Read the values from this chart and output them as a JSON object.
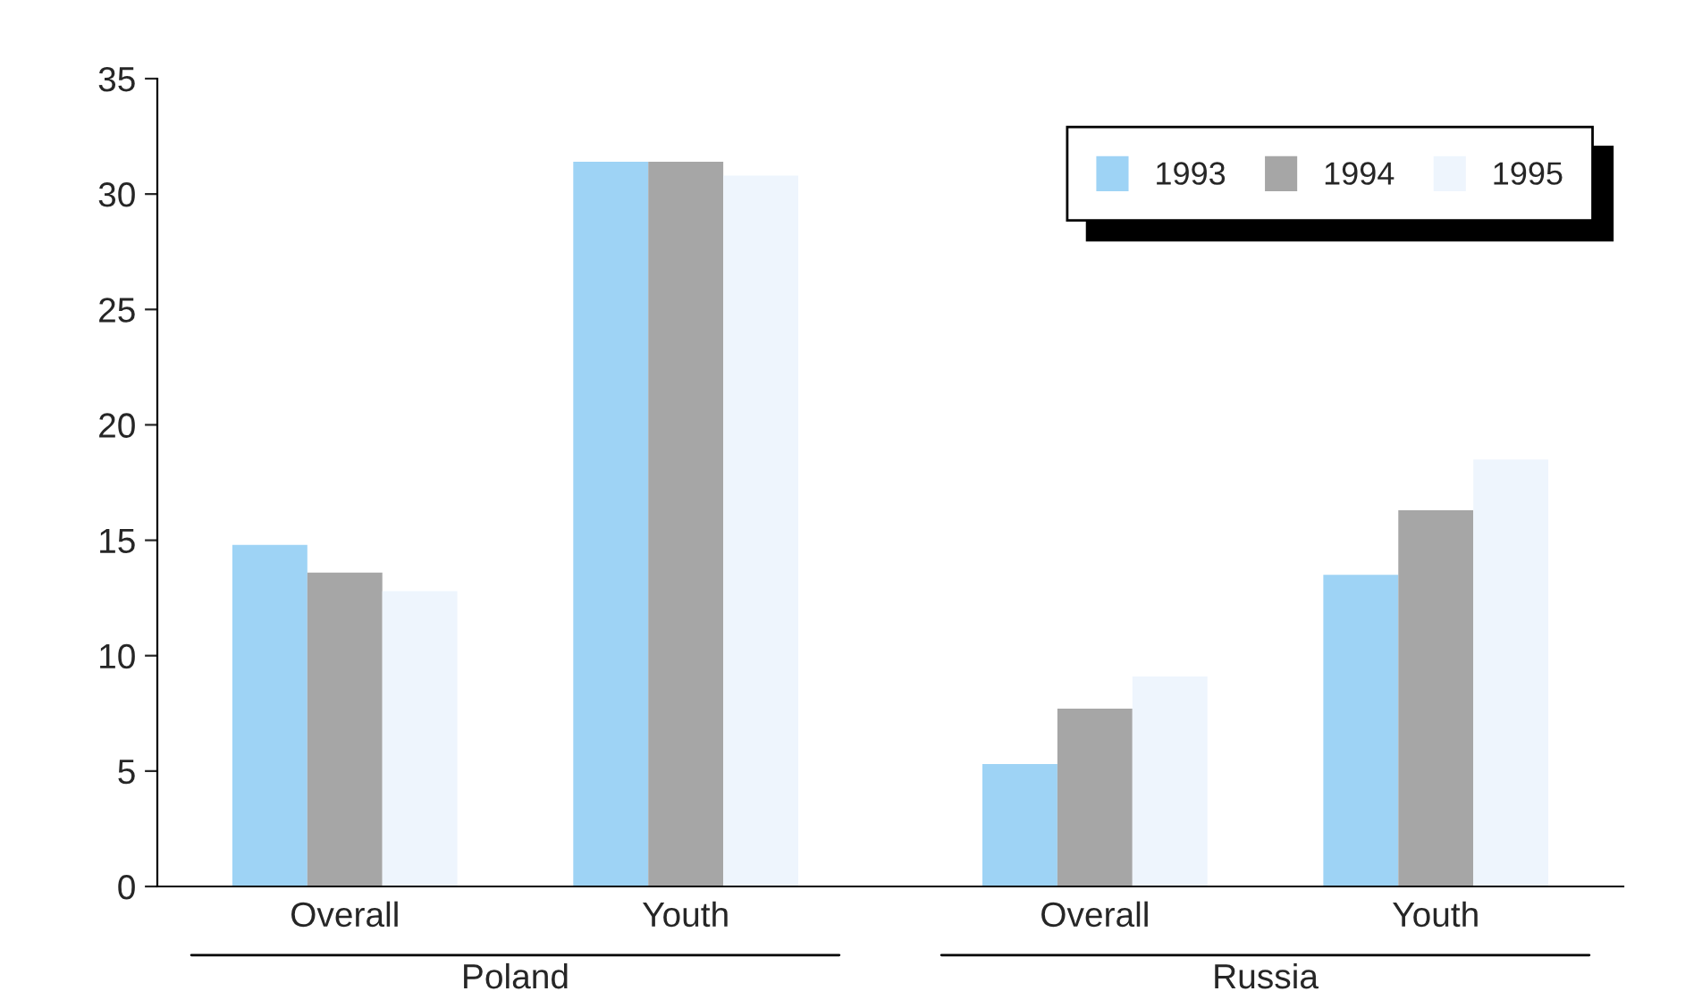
{
  "chart_data": {
    "type": "bar",
    "categories": [
      "Overall",
      "Youth",
      "Overall",
      "Youth"
    ],
    "series": [
      {
        "name": "1993",
        "color": "#9ed3f5",
        "values": [
          14.8,
          31.4,
          5.3,
          13.5
        ]
      },
      {
        "name": "1994",
        "color": "#a6a6a6",
        "values": [
          13.6,
          31.4,
          7.7,
          16.3
        ]
      },
      {
        "name": "1995",
        "color": "#eef5fd",
        "values": [
          12.8,
          30.8,
          9.1,
          18.5
        ]
      }
    ],
    "annotations": [
      "Poland",
      "Russia"
    ],
    "ylim": [
      0,
      35
    ],
    "yticks": [
      0,
      5,
      10,
      15,
      20,
      25,
      30,
      35
    ],
    "grid": false,
    "legend": "top right"
  }
}
